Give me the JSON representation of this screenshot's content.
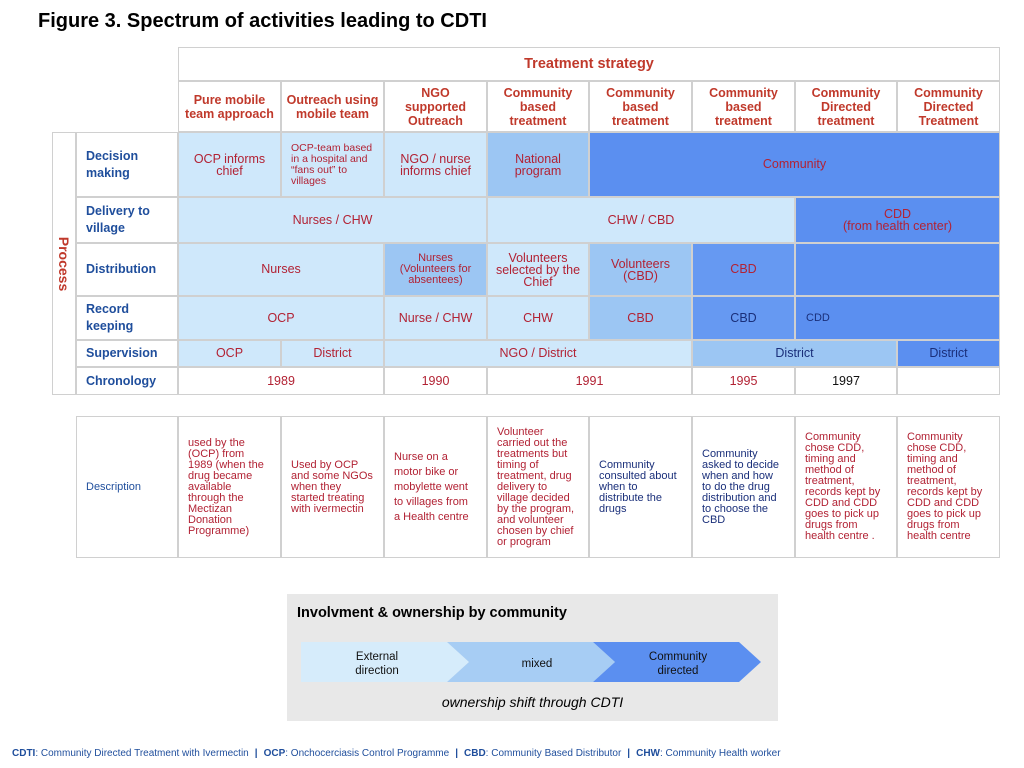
{
  "title": "Figure 3. Spectrum of activities leading to CDTI",
  "table": {
    "group_header": "Treatment strategy",
    "columns": [
      "Pure mobile team approach",
      "Outreach using mobile team",
      "NGO supported Outreach",
      "Community based treatment",
      "Community based treatment",
      "Community based treatment",
      "Community Directed treatment",
      "Community Directed Treatment"
    ],
    "process_label": "Process",
    "rows": {
      "decision": {
        "label": "Decision making",
        "cells": [
          "OCP informs chief",
          "OCP-team based in a hospital and “fans out” to villages",
          "NGO / nurse informs chief",
          "National program",
          "Community"
        ]
      },
      "delivery": {
        "label": "Delivery to village",
        "cells": [
          "Nurses / CHW",
          "CHW / CBD",
          "CDD\n(from health center)"
        ]
      },
      "distribution": {
        "label": "Distribution",
        "cells": [
          "Nurses",
          "Nurses (Volunteers for absentees)",
          "Volunteers selected by the Chief",
          "Volunteers (CBD)",
          "CBD",
          ""
        ]
      },
      "record": {
        "label": "Record keeping",
        "cells": [
          "OCP",
          "Nurse / CHW",
          "CHW",
          "CBD",
          "CBD",
          "CDD"
        ]
      },
      "supervision": {
        "label": "Supervision",
        "cells": [
          "OCP",
          "District",
          "NGO / District",
          "District",
          "District"
        ]
      },
      "chronology": {
        "label": "Chronology",
        "cells": [
          "1989",
          "1990",
          "1991",
          "1995",
          "1997",
          ""
        ]
      }
    }
  },
  "description": {
    "label": "Description",
    "cells": [
      "used by the (OCP)  from 1989 (when the drug became available through the Mectizan Donation Programme)",
      "Used by OCP and some NGOs  when they started treating with ivermectin",
      "Nurse on a motor bike or mobylette went to villages from a Health centre",
      "Volunteer carried out the treatments but timing  of treatment, drug delivery to village decided by  the program,  and volunteer chosen by chief or program",
      "Community consulted about when to distribute the drugs",
      "Community asked to decide when and how to do the drug distribution and to choose the CBD",
      "Community chose  CDD, timing and method of treatment, records kept by CDD and CDD goes to pick up drugs from health centre .",
      "Community chose  CDD, timing and method of treatment, records kept by CDD and CDD goes to pick up drugs from health centre"
    ]
  },
  "ownership": {
    "title": "Involvment & ownership by community",
    "stages": [
      "External direction",
      "mixed",
      "Community directed"
    ],
    "footnote": "ownership shift through CDTI",
    "colors": [
      "#d6ecfb",
      "#a7cdf4",
      "#5b8ff0"
    ]
  },
  "footer": [
    {
      "abbr": "CDTI",
      "text": ": Community Directed Treatment with Ivermectin"
    },
    {
      "abbr": "OCP",
      "text": ": Onchocerciasis Control Programme"
    },
    {
      "abbr": "CBD",
      "text": ": Community Based Distributor"
    },
    {
      "abbr": "CHW",
      "text": ": Community Health worker"
    }
  ],
  "colors": {
    "light_blue": "#cfe8fb",
    "mid_blue": "#9cc6f3",
    "strong_blue": "#6699f2",
    "deep_blue": "#5b8ff0",
    "label_blue": "#1f4e9c",
    "header_red": "#c0392b"
  }
}
